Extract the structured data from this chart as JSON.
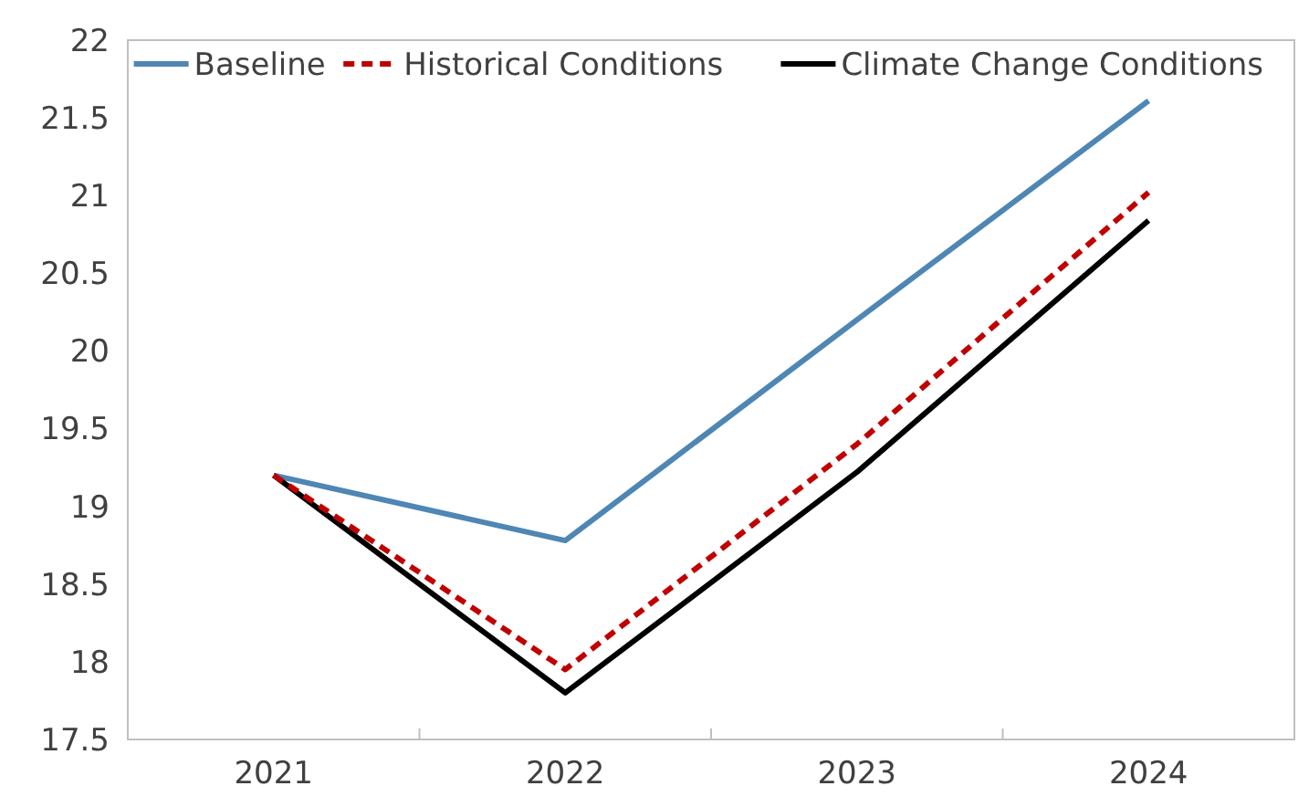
{
  "chart_data": {
    "type": "line",
    "categories": [
      "2021",
      "2022",
      "2023",
      "2024"
    ],
    "series": [
      {
        "name": "Baseline",
        "color": "#4e86b4",
        "values": [
          19.2,
          18.78,
          20.2,
          21.61
        ],
        "line_style": "solid"
      },
      {
        "name": "Historical Conditions",
        "color": "#c00000",
        "values": [
          19.2,
          17.95,
          19.4,
          21.02
        ],
        "line_style": "dashed"
      },
      {
        "name": "Climate Change Conditions",
        "color": "#000000",
        "values": [
          19.2,
          17.8,
          19.22,
          20.84
        ],
        "line_style": "solid"
      }
    ],
    "ylim": [
      17.5,
      22
    ],
    "yticks": [
      17.5,
      18,
      18.5,
      19,
      19.5,
      20,
      20.5,
      21,
      21.5,
      22
    ],
    "grid": false,
    "legend": "top",
    "marker": "none"
  }
}
